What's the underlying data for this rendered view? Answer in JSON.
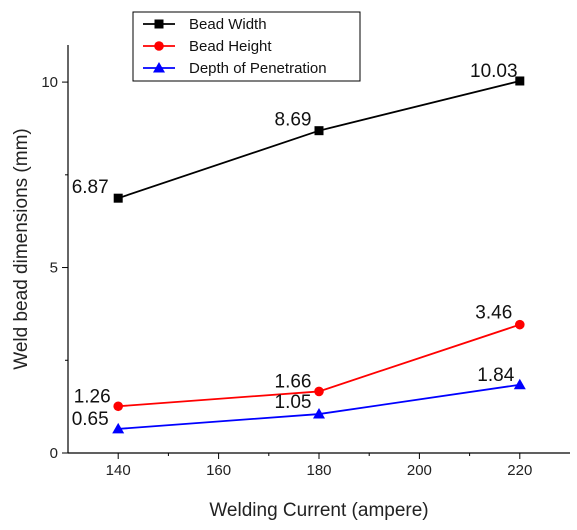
{
  "chart_data": {
    "type": "line",
    "x": [
      140,
      180,
      220
    ],
    "xlabel": "Welding Current (ampere)",
    "ylabel": "Weld bead dimensions (mm)",
    "xlim": [
      130,
      230
    ],
    "ylim": [
      0,
      11
    ],
    "xticks": [
      140,
      160,
      180,
      200,
      220
    ],
    "yticks": [
      0,
      5,
      10
    ],
    "grid": false,
    "legend_position": "top-left",
    "series": [
      {
        "name": "Bead Width",
        "values": [
          6.87,
          8.69,
          10.03
        ],
        "labels": [
          "6.87",
          "8.69",
          "10.03"
        ],
        "color": "#000000",
        "marker": "square"
      },
      {
        "name": "Bead Height",
        "values": [
          1.26,
          1.66,
          3.46
        ],
        "labels": [
          "1.26",
          "1.66",
          "3.46"
        ],
        "color": "#ff0000",
        "marker": "circle"
      },
      {
        "name": "Depth of Penetration",
        "values": [
          0.65,
          1.05,
          1.84
        ],
        "labels": [
          "0.65",
          "1.05",
          "1.84"
        ],
        "color": "#0000ff",
        "marker": "triangle"
      }
    ]
  }
}
